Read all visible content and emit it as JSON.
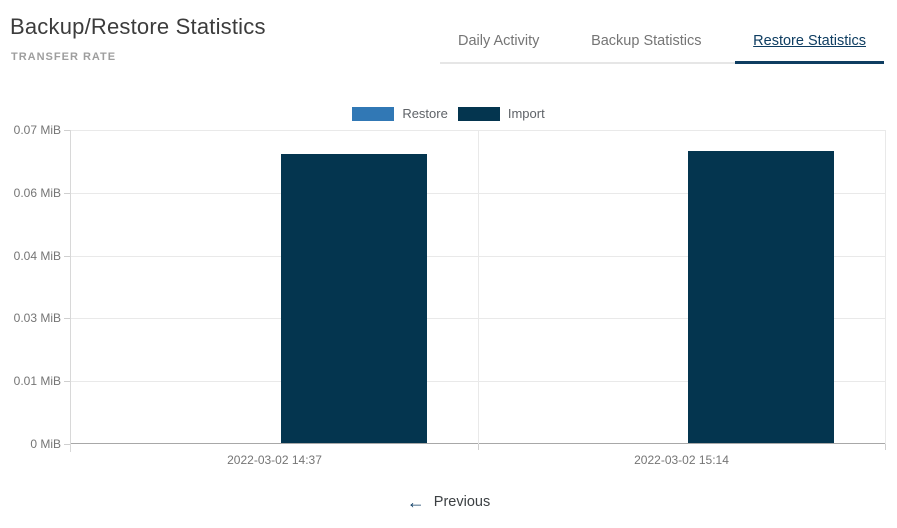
{
  "header": {
    "title": "Backup/Restore Statistics",
    "subtitle": "TRANSFER RATE"
  },
  "tabs": [
    {
      "label": "Daily Activity",
      "active": false
    },
    {
      "label": "Backup Statistics",
      "active": false
    },
    {
      "label": "Restore Statistics",
      "active": true
    }
  ],
  "pager": {
    "previous_label": "Previous",
    "arrow_icon": "arrow-left"
  },
  "colors": {
    "accent_navy": "#0e3d61",
    "bar_import": "#04354f",
    "bar_restore": "#3178b5",
    "title_text": "#3c3c3c",
    "subtitle_text": "#9e9e9e",
    "tab_inactive_text": "#757575",
    "axis_text": "#757575",
    "gridline": "#e9e9e9",
    "axis_line": "#a8a8a8",
    "tab_border": "#e6e6e6"
  },
  "chart_data": {
    "type": "bar",
    "title": "TRANSFER RATE",
    "categories": [
      "2022-03-02 14:37",
      "2022-03-02 15:14"
    ],
    "series": [
      {
        "name": "Restore",
        "color": "#3178b5",
        "values": [
          0,
          0
        ]
      },
      {
        "name": "Import",
        "color": "#04354f",
        "values": [
          0.0645,
          0.065
        ]
      }
    ],
    "xlabel": "",
    "ylabel": "",
    "y_unit": "MiB",
    "ylim": [
      0,
      0.07
    ],
    "y_ticks": [
      {
        "value": 0,
        "label": "0 MiB"
      },
      {
        "value": 0.014,
        "label": "0.01 MiB"
      },
      {
        "value": 0.028,
        "label": "0.03 MiB"
      },
      {
        "value": 0.042,
        "label": "0.04 MiB"
      },
      {
        "value": 0.056,
        "label": "0.06 MiB"
      },
      {
        "value": 0.07,
        "label": "0.07 MiB"
      }
    ],
    "grid": "horizontal",
    "legend_position": "top-center"
  }
}
